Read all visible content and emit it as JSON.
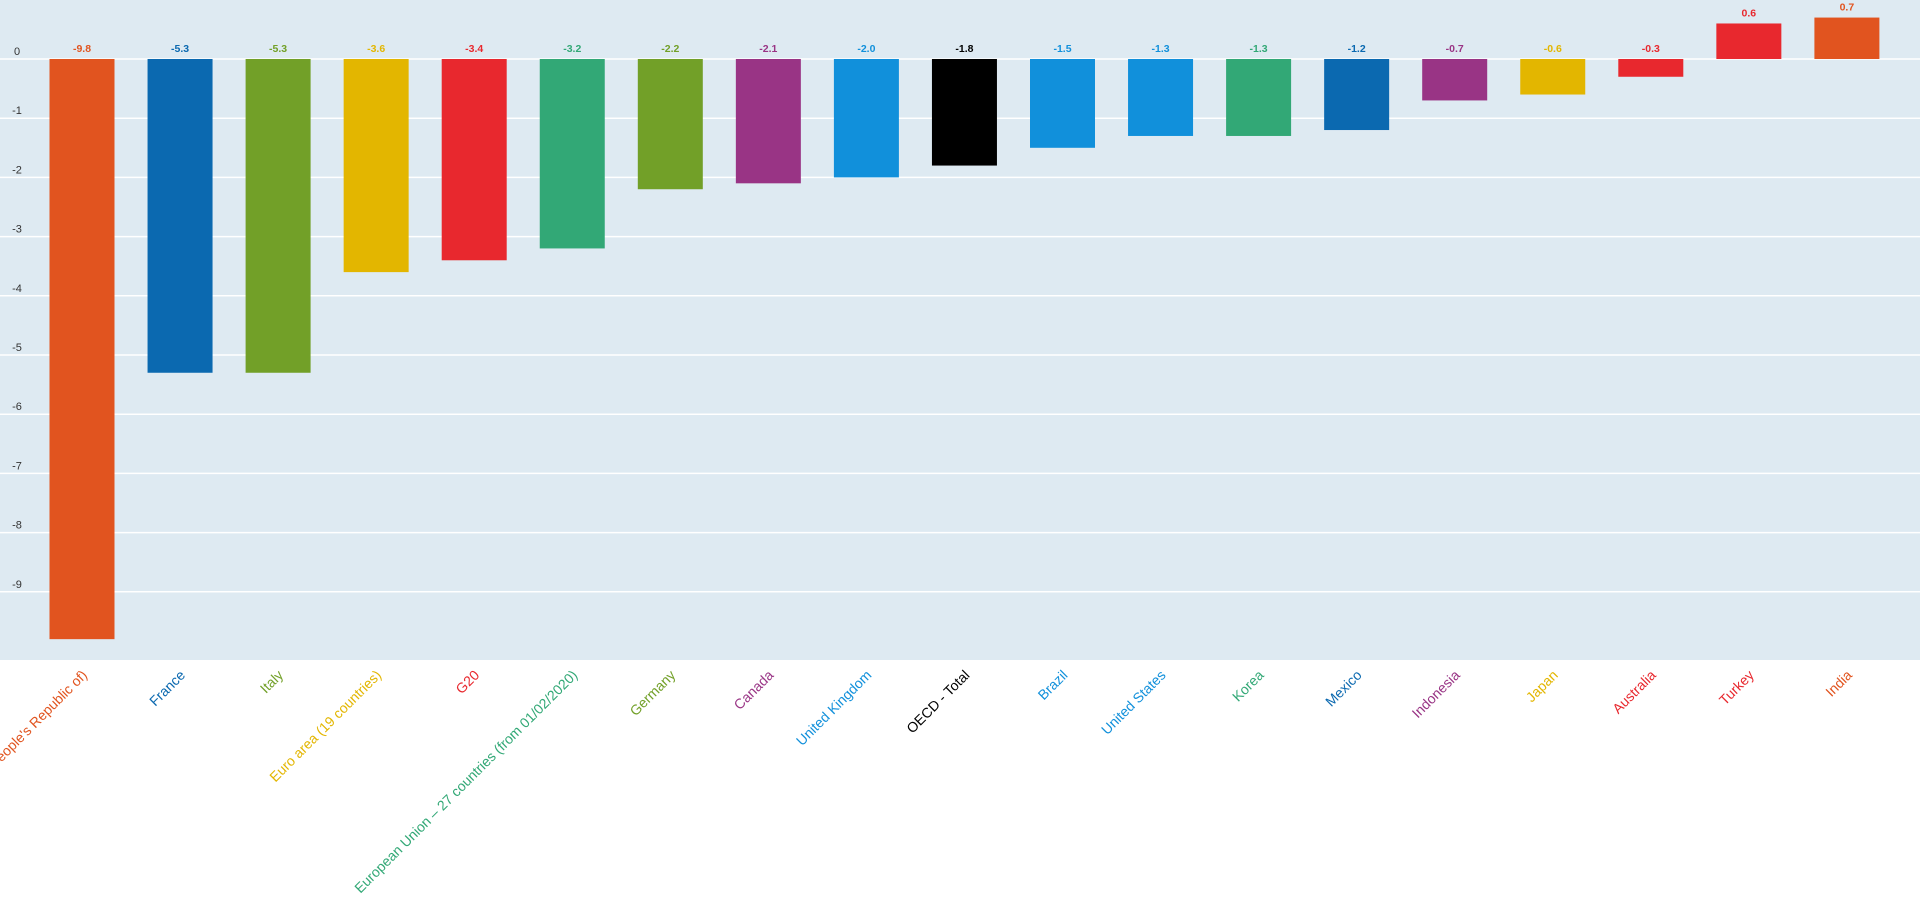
{
  "chart_data": {
    "type": "bar",
    "title": "",
    "xlabel": "",
    "ylabel": "",
    "ylim": [
      -10.2,
      1.0
    ],
    "yticks": [
      0,
      -1,
      -2,
      -3,
      -4,
      -5,
      -6,
      -7,
      -8,
      -9
    ],
    "grid": true,
    "background_color": "#DEEAF2",
    "grid_color": "#FFFFFF",
    "categories": [
      "China (People's Republic of)",
      "France",
      "Italy",
      "Euro area (19 countries)",
      "G20",
      "European Union – 27 countries (from 01/02/2020)",
      "Germany",
      "Canada",
      "United Kingdom",
      "OECD - Total",
      "Brazil",
      "United States",
      "Korea",
      "Mexico",
      "Indonesia",
      "Japan",
      "Australia",
      "Turkey",
      "India"
    ],
    "values": [
      -9.8,
      -5.3,
      -5.3,
      -3.6,
      -3.4,
      -3.2,
      -2.2,
      -2.1,
      -2.0,
      -1.8,
      -1.5,
      -1.3,
      -1.3,
      -1.2,
      -0.7,
      -0.6,
      -0.3,
      0.6,
      0.7
    ],
    "value_labels": [
      "-9.8",
      "-5.3",
      "-5.3",
      "-3.6",
      "-3.4",
      "-3.2",
      "-2.2",
      "-2.1",
      "-2.0",
      "-1.8",
      "-1.5",
      "-1.3",
      "-1.3",
      "-1.2",
      "-0.7",
      "-0.6",
      "-0.3",
      "0.6",
      "0.7"
    ],
    "colors": [
      "#E1541F",
      "#0B69B0",
      "#72A028",
      "#E3B600",
      "#E8282E",
      "#32A876",
      "#72A028",
      "#993485",
      "#1190DB",
      "#000000",
      "#1190DB",
      "#1190DB",
      "#32A876",
      "#0B69B0",
      "#993485",
      "#E3B600",
      "#E8282E",
      "#E8282E",
      "#E1541F"
    ]
  }
}
